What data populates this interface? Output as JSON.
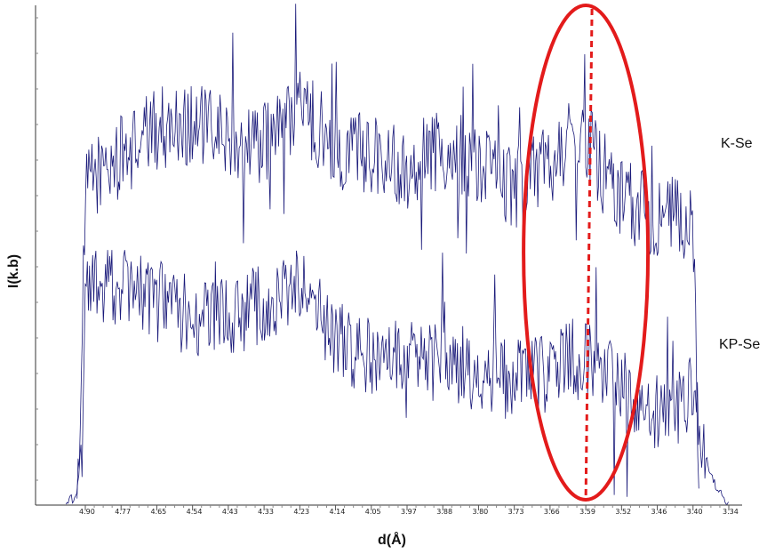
{
  "chart_data": {
    "type": "line",
    "title": "",
    "xlabel": "d(Å)",
    "ylabel": "I(k.b)",
    "x_tick_labels": [
      "4.90",
      "4.77",
      "4.65",
      "4.54",
      "4.43",
      "4.33",
      "4.23",
      "4.14",
      "4.05",
      "3.97",
      "3.88",
      "3.80",
      "3.73",
      "3.66",
      "3.59",
      "3.52",
      "3.46",
      "3.40",
      "3.34"
    ],
    "x_reversed": true,
    "grid": false,
    "series": [
      {
        "name": "K-Se",
        "color": "#1a1a7a",
        "profile": {
          "d": [
            4.93,
            4.91,
            4.9,
            4.88,
            4.77,
            4.65,
            4.54,
            4.43,
            4.33,
            4.23,
            4.14,
            4.05,
            3.97,
            3.88,
            3.8,
            3.73,
            3.66,
            3.62,
            3.59,
            3.55,
            3.52,
            3.46,
            3.42,
            3.4,
            3.39
          ],
          "mean": [
            0.02,
            0.35,
            0.62,
            0.66,
            0.7,
            0.76,
            0.77,
            0.74,
            0.73,
            0.8,
            0.72,
            0.71,
            0.68,
            0.72,
            0.69,
            0.64,
            0.69,
            0.74,
            0.73,
            0.66,
            0.62,
            0.58,
            0.58,
            0.55,
            0.02
          ]
        }
      },
      {
        "name": "KP-Se",
        "color": "#1a1a7a",
        "profile": {
          "d": [
            4.97,
            4.93,
            4.91,
            4.9,
            4.88,
            4.77,
            4.65,
            4.54,
            4.43,
            4.33,
            4.23,
            4.14,
            4.05,
            3.97,
            3.88,
            3.8,
            3.73,
            3.66,
            3.62,
            3.59,
            3.55,
            3.52,
            3.46,
            3.4,
            3.38,
            3.36,
            3.34
          ],
          "mean": [
            0.0,
            0.02,
            0.15,
            0.4,
            0.44,
            0.44,
            0.41,
            0.38,
            0.38,
            0.4,
            0.44,
            0.33,
            0.3,
            0.3,
            0.29,
            0.27,
            0.25,
            0.27,
            0.29,
            0.3,
            0.25,
            0.23,
            0.18,
            0.22,
            0.1,
            0.03,
            0.0
          ]
        }
      }
    ],
    "annotations": [
      {
        "type": "ellipse",
        "color": "#e31b1b",
        "center_d": 3.59
      },
      {
        "type": "dashed-vline",
        "color": "#e31b1b",
        "d": 3.59
      }
    ]
  }
}
